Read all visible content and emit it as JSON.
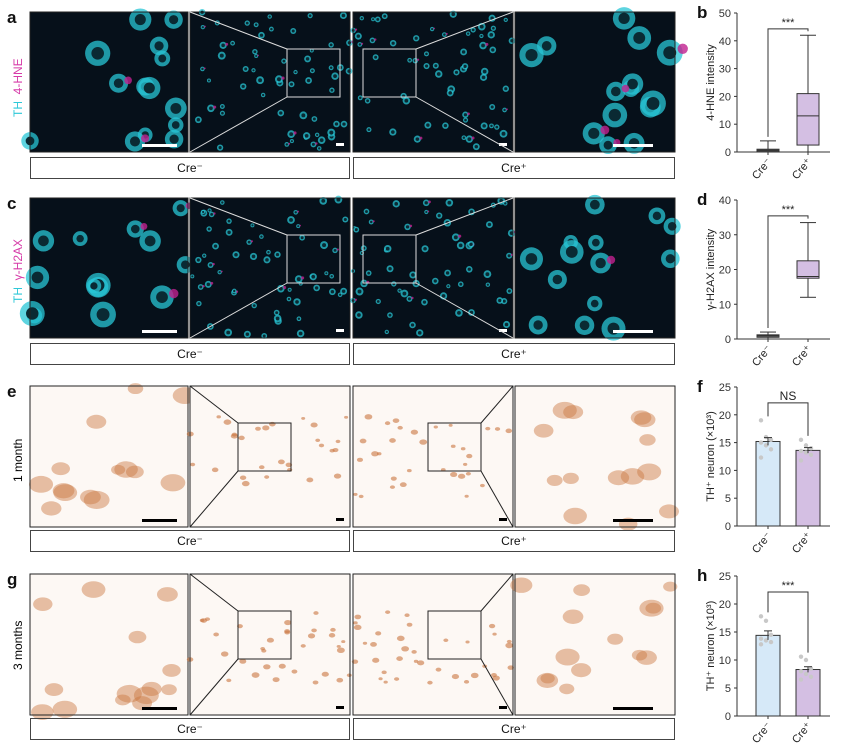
{
  "panels": {
    "a": {
      "letter": "a",
      "stain1": "TH",
      "stain2": "4-HNE",
      "stain2_color": "#d63aa8",
      "type": "fluor"
    },
    "c": {
      "letter": "c",
      "stain1": "TH",
      "stain2": "γ-H2AX",
      "stain2_color": "#d63aa8",
      "type": "fluor"
    },
    "e": {
      "letter": "e",
      "row_label": "1 month",
      "type": "dab"
    },
    "g": {
      "letter": "g",
      "row_label": "3 months",
      "type": "dab"
    }
  },
  "group_labels": [
    "Cre⁻",
    "Cre⁺"
  ],
  "colors": {
    "th": "#2ec8d8",
    "cre_neg": "#d6e9f8",
    "cre_pos": "#d4bfe3"
  },
  "chart_data": [
    {
      "id": "b",
      "letter": "b",
      "type": "box",
      "ylabel": "4-HNE intensity",
      "ylim": [
        0,
        50
      ],
      "yticks": [
        0,
        10,
        20,
        30,
        40,
        50
      ],
      "categories": [
        "Cre⁻",
        "Cre⁺"
      ],
      "significance": "***",
      "boxes": [
        {
          "min": 0,
          "q1": 0,
          "median": 0.5,
          "q3": 1,
          "max": 4
        },
        {
          "min": 0,
          "q1": 2.5,
          "median": 13,
          "q3": 21,
          "max": 42
        }
      ]
    },
    {
      "id": "d",
      "letter": "d",
      "type": "box",
      "ylabel": "γ-H2AX intensity",
      "ylim": [
        0,
        40
      ],
      "yticks": [
        0,
        10,
        20,
        30,
        40
      ],
      "categories": [
        "Cre⁻",
        "Cre⁺"
      ],
      "significance": "***",
      "boxes": [
        {
          "min": 0,
          "q1": 0.5,
          "median": 1,
          "q3": 1.2,
          "max": 2
        },
        {
          "min": 12,
          "q1": 17.5,
          "median": 18,
          "q3": 22.5,
          "max": 33.5
        }
      ]
    },
    {
      "id": "f",
      "letter": "f",
      "type": "bar",
      "ylabel": "TH⁺ neuron (×10³)",
      "ylim": [
        0,
        25
      ],
      "yticks": [
        0,
        5,
        10,
        15,
        20,
        25
      ],
      "categories": [
        "Cre⁻",
        "Cre⁺"
      ],
      "significance": "NS",
      "values": [
        15.2,
        13.6
      ],
      "errors": [
        0.7,
        0.5
      ],
      "points": [
        [
          19,
          16,
          15.5,
          15,
          14.5,
          13.8,
          12.3
        ],
        [
          15.5,
          14.5,
          14,
          13.5,
          13.2,
          12.8,
          11.8
        ]
      ]
    },
    {
      "id": "h",
      "letter": "h",
      "type": "bar",
      "ylabel": "TH⁺ neuron (×10³)",
      "ylim": [
        0,
        25
      ],
      "yticks": [
        0,
        5,
        10,
        15,
        20,
        25
      ],
      "categories": [
        "Cre⁻",
        "Cre⁺"
      ],
      "significance": "***",
      "values": [
        14.4,
        8.3
      ],
      "errors": [
        0.8,
        0.5
      ],
      "points": [
        [
          17.8,
          17,
          14.5,
          13.8,
          13.5,
          13.2,
          12.8
        ],
        [
          10.6,
          10,
          8.5,
          8,
          7.5,
          7,
          6.5
        ]
      ]
    }
  ]
}
